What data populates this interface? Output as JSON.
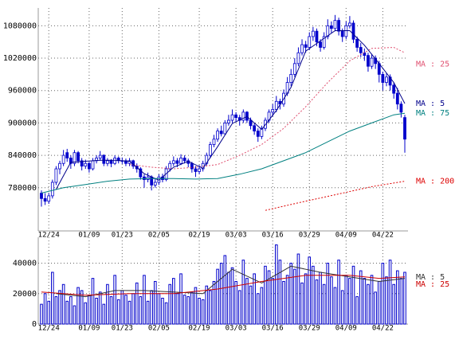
{
  "chart_data": [
    {
      "type": "candlestick",
      "color": "#0000cc",
      "grid": true,
      "legend": "line-end",
      "ylim": [
        700000,
        1113000
      ],
      "yticks": [
        780000,
        840000,
        900000,
        960000,
        1020000,
        1080000
      ],
      "categories": [
        null,
        null,
        "12/24",
        null,
        null,
        null,
        null,
        null,
        null,
        null,
        null,
        null,
        null,
        "01/09",
        null,
        null,
        null,
        null,
        null,
        null,
        null,
        null,
        "01/23",
        null,
        null,
        null,
        null,
        null,
        null,
        null,
        null,
        null,
        "02/05",
        null,
        null,
        null,
        null,
        null,
        null,
        null,
        null,
        null,
        null,
        "02/19",
        null,
        null,
        null,
        null,
        null,
        null,
        null,
        null,
        null,
        "03/03",
        null,
        null,
        null,
        null,
        null,
        null,
        null,
        null,
        null,
        "03/16",
        null,
        null,
        null,
        null,
        null,
        null,
        null,
        null,
        null,
        "03/29",
        null,
        null,
        null,
        null,
        null,
        null,
        null,
        null,
        null,
        "04/09",
        null,
        null,
        null,
        null,
        null,
        null,
        null,
        null,
        null,
        "04/22",
        null,
        null,
        null,
        null,
        null,
        null
      ],
      "ohlc": [
        [
          770000,
          775000,
          745000,
          760000
        ],
        [
          760000,
          770000,
          748000,
          755000
        ],
        [
          755000,
          770000,
          750000,
          765000
        ],
        [
          765000,
          795000,
          760000,
          790000
        ],
        [
          790000,
          820000,
          785000,
          815000
        ],
        [
          815000,
          830000,
          805000,
          825000
        ],
        [
          825000,
          850000,
          820000,
          840000
        ],
        [
          845000,
          852000,
          828000,
          835000
        ],
        [
          835000,
          840000,
          815000,
          825000
        ],
        [
          825000,
          850000,
          820000,
          845000
        ],
        [
          845000,
          848000,
          825000,
          830000
        ],
        [
          830000,
          835000,
          812000,
          820000
        ],
        [
          820000,
          832000,
          815000,
          825000
        ],
        [
          825000,
          828000,
          808000,
          815000
        ],
        [
          815000,
          835000,
          812000,
          830000
        ],
        [
          830000,
          840000,
          825000,
          835000
        ],
        [
          835000,
          848000,
          830000,
          840000
        ],
        [
          840000,
          842000,
          820000,
          825000
        ],
        [
          825000,
          835000,
          820000,
          830000
        ],
        [
          830000,
          833000,
          818000,
          825000
        ],
        [
          825000,
          840000,
          822000,
          835000
        ],
        [
          835000,
          838000,
          825000,
          830000
        ],
        [
          830000,
          836000,
          824000,
          830000
        ],
        [
          830000,
          834000,
          820000,
          825000
        ],
        [
          825000,
          835000,
          820000,
          830000
        ],
        [
          830000,
          832000,
          815000,
          820000
        ],
        [
          820000,
          825000,
          808000,
          815000
        ],
        [
          815000,
          818000,
          795000,
          800000
        ],
        [
          800000,
          805000,
          780000,
          795000
        ],
        [
          795000,
          808000,
          790000,
          800000
        ],
        [
          800000,
          803000,
          775000,
          785000
        ],
        [
          785000,
          798000,
          780000,
          790000
        ],
        [
          790000,
          805000,
          785000,
          800000
        ],
        [
          800000,
          806000,
          790000,
          795000
        ],
        [
          795000,
          820000,
          792000,
          815000
        ],
        [
          815000,
          830000,
          810000,
          825000
        ],
        [
          825000,
          838000,
          820000,
          830000
        ],
        [
          830000,
          835000,
          818000,
          825000
        ],
        [
          825000,
          842000,
          822000,
          835000
        ],
        [
          835000,
          840000,
          825000,
          830000
        ],
        [
          830000,
          834000,
          818000,
          825000
        ],
        [
          825000,
          828000,
          808000,
          815000
        ],
        [
          815000,
          820000,
          800000,
          810000
        ],
        [
          810000,
          822000,
          805000,
          815000
        ],
        [
          815000,
          830000,
          810000,
          825000
        ],
        [
          825000,
          845000,
          820000,
          840000
        ],
        [
          840000,
          865000,
          835000,
          860000
        ],
        [
          860000,
          878000,
          855000,
          870000
        ],
        [
          870000,
          890000,
          865000,
          885000
        ],
        [
          885000,
          895000,
          875000,
          880000
        ],
        [
          880000,
          905000,
          878000,
          900000
        ],
        [
          900000,
          915000,
          895000,
          905000
        ],
        [
          905000,
          925000,
          900000,
          915000
        ],
        [
          915000,
          920000,
          902000,
          910000
        ],
        [
          910000,
          915000,
          895000,
          905000
        ],
        [
          905000,
          925000,
          900000,
          920000
        ],
        [
          920000,
          922000,
          900000,
          905000
        ],
        [
          905000,
          910000,
          888000,
          895000
        ],
        [
          895000,
          900000,
          878000,
          885000
        ],
        [
          885000,
          890000,
          865000,
          875000
        ],
        [
          875000,
          895000,
          870000,
          890000
        ],
        [
          890000,
          910000,
          885000,
          905000
        ],
        [
          905000,
          925000,
          900000,
          920000
        ],
        [
          920000,
          935000,
          912000,
          925000
        ],
        [
          925000,
          950000,
          920000,
          940000
        ],
        [
          940000,
          945000,
          925000,
          935000
        ],
        [
          935000,
          962000,
          930000,
          955000
        ],
        [
          955000,
          985000,
          950000,
          975000
        ],
        [
          975000,
          1000000,
          968000,
          990000
        ],
        [
          990000,
          1020000,
          985000,
          1010000
        ],
        [
          1010000,
          1040000,
          1005000,
          1030000
        ],
        [
          1030000,
          1055000,
          1025000,
          1045000
        ],
        [
          1045000,
          1052000,
          1030000,
          1040000
        ],
        [
          1040000,
          1068000,
          1035000,
          1060000
        ],
        [
          1060000,
          1078000,
          1052000,
          1070000
        ],
        [
          1070000,
          1075000,
          1042000,
          1050000
        ],
        [
          1050000,
          1055000,
          1032000,
          1040000
        ],
        [
          1040000,
          1068000,
          1036000,
          1060000
        ],
        [
          1060000,
          1092000,
          1055000,
          1080000
        ],
        [
          1080000,
          1088000,
          1066000,
          1075000
        ],
        [
          1075000,
          1100000,
          1070000,
          1090000
        ],
        [
          1090000,
          1095000,
          1062000,
          1070000
        ],
        [
          1070000,
          1075000,
          1050000,
          1060000
        ],
        [
          1060000,
          1088000,
          1055000,
          1080000
        ],
        [
          1080000,
          1098000,
          1075000,
          1085000
        ],
        [
          1085000,
          1090000,
          1048000,
          1055000
        ],
        [
          1055000,
          1060000,
          1032000,
          1040000
        ],
        [
          1040000,
          1048000,
          1022000,
          1030000
        ],
        [
          1030000,
          1038000,
          1015000,
          1025000
        ],
        [
          1025000,
          1030000,
          995000,
          1005000
        ],
        [
          1005000,
          1028000,
          1000000,
          1020000
        ],
        [
          1020000,
          1025000,
          1000000,
          1010000
        ],
        [
          1010000,
          1015000,
          975000,
          990000
        ],
        [
          990000,
          995000,
          960000,
          975000
        ],
        [
          975000,
          992000,
          968000,
          985000
        ],
        [
          985000,
          990000,
          960000,
          970000
        ],
        [
          970000,
          975000,
          945000,
          955000
        ],
        [
          955000,
          965000,
          925000,
          935000
        ],
        [
          935000,
          940000,
          910000,
          920000
        ],
        [
          910000,
          915000,
          845000,
          870000
        ]
      ],
      "series": [
        {
          "name": "MA : 25",
          "color": "#e05070",
          "dash": true,
          "x": [
            24,
            30,
            36,
            42,
            48,
            54,
            60,
            66,
            72,
            78,
            84,
            90,
            96,
            99
          ],
          "values": [
            823000,
            818000,
            815000,
            818000,
            823000,
            840000,
            860000,
            890000,
            930000,
            975000,
            1015000,
            1038000,
            1040000,
            1030000
          ]
        },
        {
          "name": "MA : 5",
          "color": "#00008b",
          "dash": false,
          "x": [
            4,
            8,
            12,
            16,
            20,
            24,
            28,
            32,
            36,
            40,
            44,
            48,
            52,
            56,
            60,
            64,
            68,
            72,
            76,
            80,
            84,
            88,
            92,
            96,
            99
          ],
          "values": [
            777000,
            827000,
            829000,
            831000,
            831000,
            829000,
            806000,
            794000,
            818000,
            829000,
            816000,
            856000,
            899000,
            912000,
            888000,
            923000,
            966000,
            1033000,
            1052000,
            1071000,
            1071000,
            1044000,
            1010000,
            975000,
            936000
          ]
        },
        {
          "name": "MA : 75",
          "color": "#008080",
          "dash": false,
          "x": [
            0,
            6,
            12,
            18,
            24,
            30,
            36,
            42,
            48,
            54,
            60,
            66,
            72,
            78,
            84,
            90,
            96,
            99
          ],
          "values": [
            770000,
            780000,
            786000,
            792000,
            796000,
            797000,
            797000,
            796000,
            797000,
            805000,
            815000,
            830000,
            845000,
            865000,
            885000,
            900000,
            915000,
            918000
          ]
        },
        {
          "name": "MA : 200",
          "color": "#dd0000",
          "dash": true,
          "x": [
            61,
            70,
            80,
            90,
            99
          ],
          "values": [
            738000,
            752000,
            767000,
            782000,
            792000
          ]
        }
      ]
    },
    {
      "type": "bar",
      "color": "#0000cc",
      "grid": true,
      "legend": "right",
      "ylim": [
        0,
        57000
      ],
      "yticks": [
        0,
        20000,
        40000
      ],
      "categories": [
        null,
        null,
        "12/24",
        null,
        null,
        null,
        null,
        null,
        null,
        null,
        null,
        null,
        null,
        "01/09",
        null,
        null,
        null,
        null,
        null,
        null,
        null,
        null,
        "01/23",
        null,
        null,
        null,
        null,
        null,
        null,
        null,
        null,
        null,
        "02/05",
        null,
        null,
        null,
        null,
        null,
        null,
        null,
        null,
        null,
        null,
        "02/19",
        null,
        null,
        null,
        null,
        null,
        null,
        null,
        null,
        null,
        "03/03",
        null,
        null,
        null,
        null,
        null,
        null,
        null,
        null,
        null,
        "03/16",
        null,
        null,
        null,
        null,
        null,
        null,
        null,
        null,
        null,
        "03/29",
        null,
        null,
        null,
        null,
        null,
        null,
        null,
        null,
        null,
        "04/09",
        null,
        null,
        null,
        null,
        null,
        null,
        null,
        null,
        null,
        "04/22",
        null,
        null,
        null,
        null,
        null,
        null
      ],
      "values": [
        13000,
        20000,
        15000,
        34000,
        18000,
        22000,
        26000,
        15000,
        18000,
        12000,
        24000,
        22000,
        14000,
        19000,
        30000,
        17000,
        21000,
        13000,
        26000,
        18000,
        32000,
        16000,
        22000,
        19000,
        15000,
        20000,
        27000,
        18000,
        32000,
        15000,
        22000,
        28000,
        20000,
        17000,
        14000,
        26000,
        30000,
        20000,
        33000,
        19000,
        18000,
        21000,
        24000,
        17000,
        16000,
        25000,
        22000,
        28000,
        36000,
        40000,
        45000,
        34000,
        37000,
        28000,
        22000,
        42000,
        30000,
        25000,
        33000,
        20000,
        24000,
        38000,
        35000,
        30000,
        52000,
        42000,
        28000,
        32000,
        40000,
        36000,
        46000,
        27000,
        33000,
        44000,
        38000,
        29000,
        34000,
        26000,
        40000,
        31000,
        24000,
        42000,
        22000,
        32000,
        30000,
        38000,
        18000,
        35000,
        30000,
        26000,
        32000,
        21000,
        28000,
        40000,
        31000,
        42000,
        26000,
        35000,
        30000,
        34000
      ],
      "series": [
        {
          "name": "MA : 5",
          "color": "#333333",
          "dash": false,
          "x": [
            4,
            12,
            20,
            28,
            36,
            44,
            52,
            60,
            68,
            76,
            84,
            92,
            99
          ],
          "values": [
            20000,
            18000,
            22000,
            22000,
            21000,
            20000,
            36000,
            27000,
            38000,
            34000,
            31000,
            28000,
            30000
          ]
        },
        {
          "name": "MA : 25",
          "color": "#cc0000",
          "dash": false,
          "x": [
            0,
            12,
            24,
            36,
            48,
            60,
            72,
            84,
            92,
            99
          ],
          "values": [
            21000,
            19000,
            20000,
            20000,
            23000,
            28000,
            32000,
            32000,
            30000,
            31000
          ]
        }
      ]
    }
  ]
}
